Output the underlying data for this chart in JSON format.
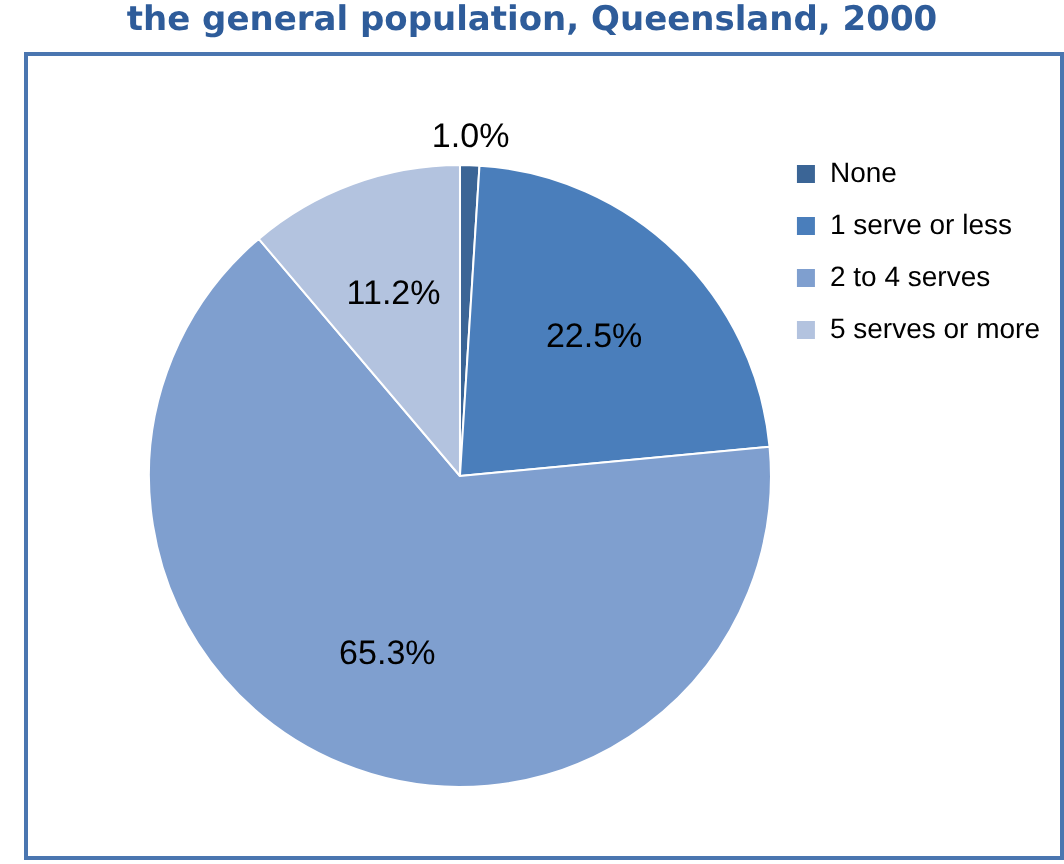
{
  "chart_data": {
    "type": "pie",
    "title": "the general population, Queensland, 2000",
    "categories": [
      "None",
      "1 serve or less",
      "2 to 4 serves",
      "5 serves or more"
    ],
    "values": [
      1.0,
      22.5,
      65.3,
      11.2
    ],
    "colors": [
      "#3b6596",
      "#4a7ebb",
      "#7f9fcf",
      "#b3c3df"
    ],
    "value_labels": [
      "1.0%",
      "22.5%",
      "65.3%",
      "11.2%"
    ],
    "legend": "top right"
  }
}
